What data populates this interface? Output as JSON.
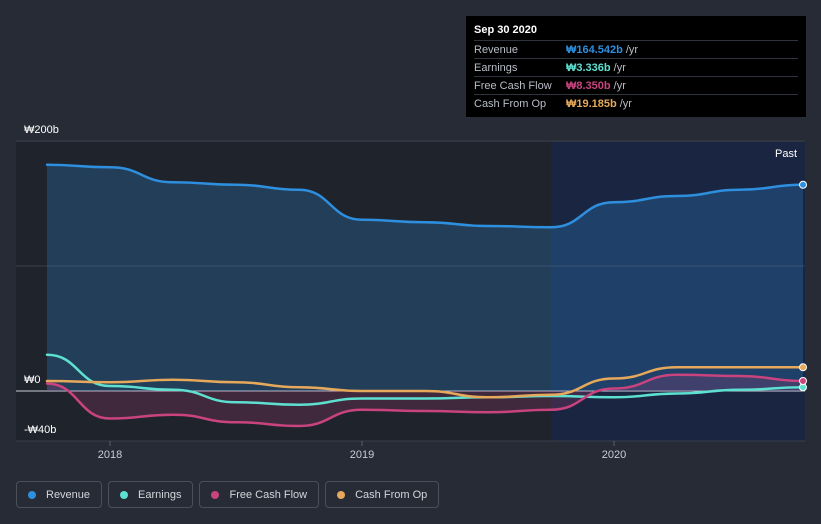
{
  "tooltip": {
    "date": "Sep 30 2020",
    "rows": [
      {
        "name": "Revenue",
        "value": "₩164.542b",
        "unit": "/yr",
        "color": "#2e8fde"
      },
      {
        "name": "Earnings",
        "value": "₩3.336b",
        "unit": "/yr",
        "color": "#5ee0d0"
      },
      {
        "name": "Free Cash Flow",
        "value": "₩8.350b",
        "unit": "/yr",
        "color": "#c9437e"
      },
      {
        "name": "Cash From Op",
        "value": "₩19.185b",
        "unit": "/yr",
        "color": "#e6a85a"
      }
    ]
  },
  "legend": [
    {
      "label": "Revenue",
      "color": "#2e8fde"
    },
    {
      "label": "Earnings",
      "color": "#5ee0d0"
    },
    {
      "label": "Free Cash Flow",
      "color": "#c9437e"
    },
    {
      "label": "Cash From Op",
      "color": "#e6a85a"
    }
  ],
  "past_label": "Past",
  "chart_data": {
    "type": "line",
    "title": "",
    "xlabel": "",
    "ylabel": "",
    "ylim": [
      -40,
      200
    ],
    "yticks": [
      {
        "value": 200,
        "label": "₩200b"
      },
      {
        "value": 0,
        "label": "₩0"
      },
      {
        "value": -40,
        "label": "-₩40b"
      }
    ],
    "xlim": [
      2017.75,
      2020.75
    ],
    "xticks": [
      {
        "value": 2018,
        "label": "2018"
      },
      {
        "value": 2019,
        "label": "2019"
      },
      {
        "value": 2020,
        "label": "2020"
      }
    ],
    "shaded_from": 2019.75,
    "series": [
      {
        "name": "Revenue",
        "color": "#2e8fde",
        "fill": true,
        "x": [
          2017.75,
          2018.0,
          2018.25,
          2018.5,
          2018.75,
          2019.0,
          2019.25,
          2019.5,
          2019.75,
          2020.0,
          2020.25,
          2020.5,
          2020.75
        ],
        "y": [
          181,
          179,
          167,
          165,
          161,
          137,
          135,
          132,
          131,
          151,
          156,
          161,
          165
        ]
      },
      {
        "name": "Earnings",
        "color": "#5ee0d0",
        "fill": false,
        "x": [
          2017.75,
          2018.0,
          2018.25,
          2018.5,
          2018.75,
          2019.0,
          2019.25,
          2019.5,
          2019.75,
          2020.0,
          2020.25,
          2020.5,
          2020.75
        ],
        "y": [
          29,
          4,
          1,
          -9,
          -11,
          -6,
          -6,
          -5,
          -4,
          -5,
          -2,
          1,
          3
        ]
      },
      {
        "name": "Free Cash Flow",
        "color": "#c9437e",
        "fill": true,
        "x": [
          2017.75,
          2018.0,
          2018.25,
          2018.5,
          2018.75,
          2019.0,
          2019.25,
          2019.5,
          2019.75,
          2020.0,
          2020.25,
          2020.5,
          2020.75
        ],
        "y": [
          6,
          -22,
          -19,
          -25,
          -28,
          -15,
          -16,
          -17,
          -15,
          2,
          13,
          12,
          8
        ]
      },
      {
        "name": "Cash From Op",
        "color": "#e6a85a",
        "fill": false,
        "x": [
          2017.75,
          2018.0,
          2018.25,
          2018.5,
          2018.75,
          2019.0,
          2019.25,
          2019.5,
          2019.75,
          2020.0,
          2020.25,
          2020.5,
          2020.75
        ],
        "y": [
          8,
          7,
          9,
          7,
          3,
          0,
          0,
          -5,
          -3,
          10,
          19,
          19,
          19
        ]
      }
    ]
  }
}
